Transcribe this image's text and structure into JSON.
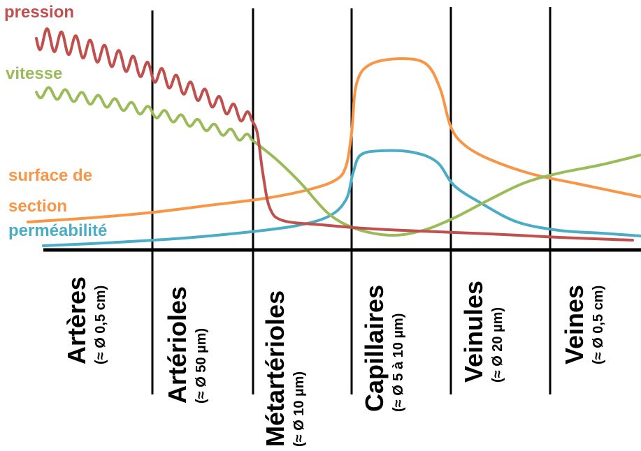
{
  "series": [
    {
      "key": "pression",
      "label": "pression",
      "color": "#c0504d"
    },
    {
      "key": "vitesse",
      "label": "vitesse",
      "color": "#9bbb59"
    },
    {
      "key": "surface",
      "label": "surface de",
      "label2": "section",
      "color": "#f79646"
    },
    {
      "key": "permeabilite",
      "label": "perméabilité",
      "color": "#4bacc6"
    }
  ],
  "categories": [
    {
      "name": "Artères",
      "size": "(≈ Ø 0,5 cm)"
    },
    {
      "name": "Artérioles",
      "size": "(≈ Ø 50 µm)"
    },
    {
      "name": "Métartérioles",
      "size": "(≈ Ø 10 µm)"
    },
    {
      "name": "Capillaires",
      "size": "(≈ Ø 5 à 10 µm)"
    },
    {
      "name": "Veinules",
      "size": "(≈ Ø 20 µm)"
    },
    {
      "name": "Veines",
      "size": "(≈ Ø 0,5 cm)"
    }
  ]
}
